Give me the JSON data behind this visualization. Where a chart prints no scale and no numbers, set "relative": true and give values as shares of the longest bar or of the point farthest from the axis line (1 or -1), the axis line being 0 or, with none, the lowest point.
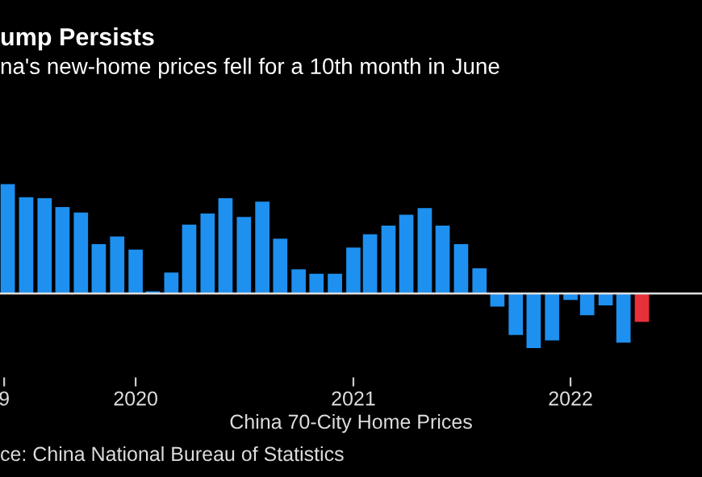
{
  "chart_data": {
    "type": "bar",
    "title": "ump Persists",
    "subtitle": "na's new-home prices fell for a 10th month in June",
    "xlabel": "China 70-City Home Prices",
    "annotations": [
      "ce: China National Bureau of Statistics"
    ],
    "relative": true,
    "x": [
      "2019-07",
      "2019-08",
      "2019-09",
      "2019-10",
      "2019-11",
      "2019-12",
      "2020-01",
      "2020-02",
      "2020-03",
      "2020-04",
      "2020-05",
      "2020-06",
      "2020-07",
      "2020-08",
      "2020-09",
      "2020-10",
      "2020-11",
      "2020-12",
      "2021-01",
      "2021-02",
      "2021-03",
      "2021-04",
      "2021-05",
      "2021-06",
      "2021-07",
      "2021-08",
      "2021-09",
      "2021-10",
      "2021-11",
      "2021-12",
      "2022-01",
      "2022-02",
      "2022-03",
      "2022-04",
      "2022-05",
      "2022-06"
    ],
    "values": [
      1.0,
      0.88,
      0.87,
      0.79,
      0.74,
      0.45,
      0.52,
      0.4,
      0.02,
      0.19,
      0.63,
      0.73,
      0.87,
      0.7,
      0.84,
      0.5,
      0.22,
      0.18,
      0.18,
      0.42,
      0.54,
      0.62,
      0.72,
      0.78,
      0.62,
      0.45,
      0.23,
      -0.12,
      -0.38,
      -0.5,
      -0.43,
      -0.06,
      -0.2,
      -0.11,
      -0.45,
      -0.26
    ],
    "colors": [
      "#1e90f0",
      "#1e90f0",
      "#1e90f0",
      "#1e90f0",
      "#1e90f0",
      "#1e90f0",
      "#1e90f0",
      "#1e90f0",
      "#1e90f0",
      "#1e90f0",
      "#1e90f0",
      "#1e90f0",
      "#1e90f0",
      "#1e90f0",
      "#1e90f0",
      "#1e90f0",
      "#1e90f0",
      "#1e90f0",
      "#1e90f0",
      "#1e90f0",
      "#1e90f0",
      "#1e90f0",
      "#1e90f0",
      "#1e90f0",
      "#1e90f0",
      "#1e90f0",
      "#1e90f0",
      "#1e90f0",
      "#1e90f0",
      "#1e90f0",
      "#1e90f0",
      "#1e90f0",
      "#1e90f0",
      "#1e90f0",
      "#1e90f0",
      "#e8303a"
    ],
    "xlim": [
      "2019-06-18",
      "2022-09-10"
    ],
    "xticks": [
      {
        "value": "2019-06-25",
        "label": "9"
      },
      {
        "value": "2020-02",
        "label": "2020"
      },
      {
        "value": "2021-02",
        "label": "2021"
      },
      {
        "value": "2022-02",
        "label": "2022"
      }
    ],
    "grid": false
  }
}
